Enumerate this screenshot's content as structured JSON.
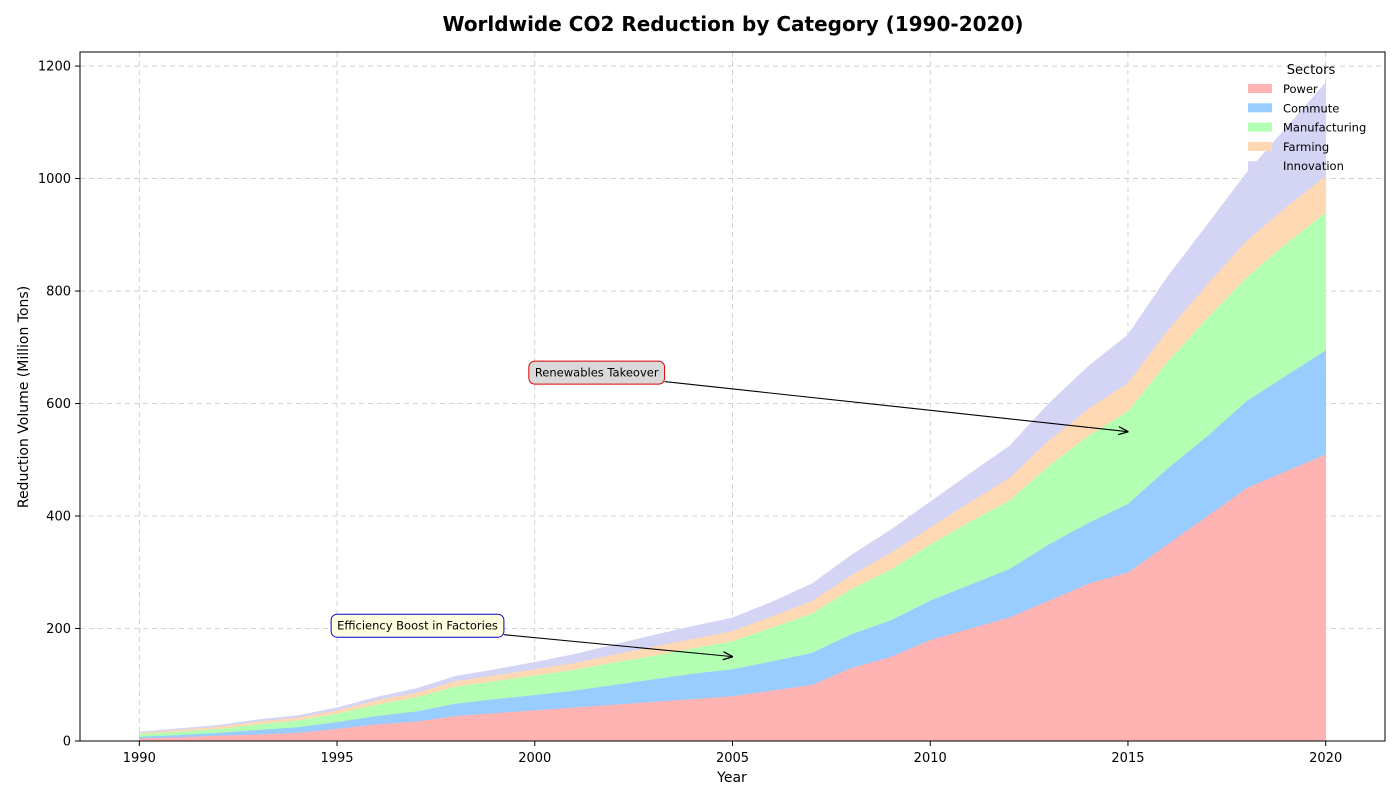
{
  "chart_data": {
    "type": "area",
    "stacked": true,
    "title": "Worldwide CO2 Reduction by Category (1990-2020)",
    "xlabel": "Year",
    "ylabel": "Reduction Volume (Million Tons)",
    "xlim": [
      1988.5,
      2021.5
    ],
    "ylim": [
      0,
      1225
    ],
    "xticks": [
      1990,
      1995,
      2000,
      2005,
      2010,
      2015,
      2020
    ],
    "yticks": [
      0,
      200,
      400,
      600,
      800,
      1000,
      1200
    ],
    "grid": true,
    "legend": {
      "title": "Sectors",
      "placement": "top-right"
    },
    "x": [
      1990,
      1991,
      1992,
      1993,
      1994,
      1995,
      1996,
      1997,
      1998,
      1999,
      2000,
      2001,
      2002,
      2003,
      2004,
      2005,
      2006,
      2007,
      2008,
      2009,
      2010,
      2011,
      2012,
      2013,
      2014,
      2015,
      2016,
      2017,
      2018,
      2019,
      2020
    ],
    "series": [
      {
        "name": "Power",
        "color": "#ffb3b3",
        "values": [
          5,
          7,
          10,
          12,
          15,
          22,
          30,
          35,
          45,
          50,
          55,
          60,
          65,
          70,
          75,
          80,
          90,
          100,
          130,
          150,
          180,
          200,
          220,
          250,
          280,
          300,
          350,
          400,
          450,
          480,
          510
        ]
      },
      {
        "name": "Commute",
        "color": "#99ccff",
        "values": [
          3,
          4,
          5,
          8,
          10,
          12,
          15,
          18,
          22,
          25,
          27,
          30,
          35,
          40,
          45,
          48,
          52,
          57,
          60,
          65,
          70,
          78,
          86,
          100,
          108,
          122,
          135,
          142,
          155,
          170,
          185
        ]
      },
      {
        "name": "Manufacturing",
        "color": "#b3ffb3",
        "values": [
          5,
          6,
          7,
          10,
          12,
          15,
          20,
          25,
          30,
          32,
          35,
          37,
          40,
          42,
          45,
          50,
          60,
          70,
          80,
          90,
          100,
          112,
          122,
          140,
          155,
          165,
          190,
          210,
          220,
          235,
          245
        ]
      },
      {
        "name": "Farming",
        "color": "#ffd9b3",
        "values": [
          2,
          3,
          4,
          5,
          5,
          6,
          8,
          8,
          10,
          10,
          11,
          12,
          14,
          16,
          17,
          18,
          20,
          22,
          25,
          30,
          30,
          35,
          40,
          45,
          48,
          50,
          55,
          60,
          65,
          65,
          65
        ]
      },
      {
        "name": "Innovation",
        "color": "#d4d4f5",
        "values": [
          1,
          2,
          2,
          3,
          3,
          4,
          5,
          7,
          8,
          10,
          12,
          15,
          17,
          20,
          22,
          23,
          25,
          30,
          35,
          40,
          45,
          50,
          56,
          65,
          75,
          85,
          95,
          105,
          120,
          140,
          165
        ]
      }
    ],
    "annotations": [
      {
        "text": "Renewables Takeover",
        "xy": [
          2015,
          550
        ],
        "xytext": [
          1999.85,
          655
        ],
        "box_fill": "#d9d9d9",
        "box_edge": "#dd0000"
      },
      {
        "text": "Efficiency Boost in Factories",
        "xy": [
          2005,
          150
        ],
        "xytext": [
          1994.85,
          205
        ],
        "box_fill": "#ffffe0",
        "box_edge": "#0000cc"
      }
    ]
  }
}
